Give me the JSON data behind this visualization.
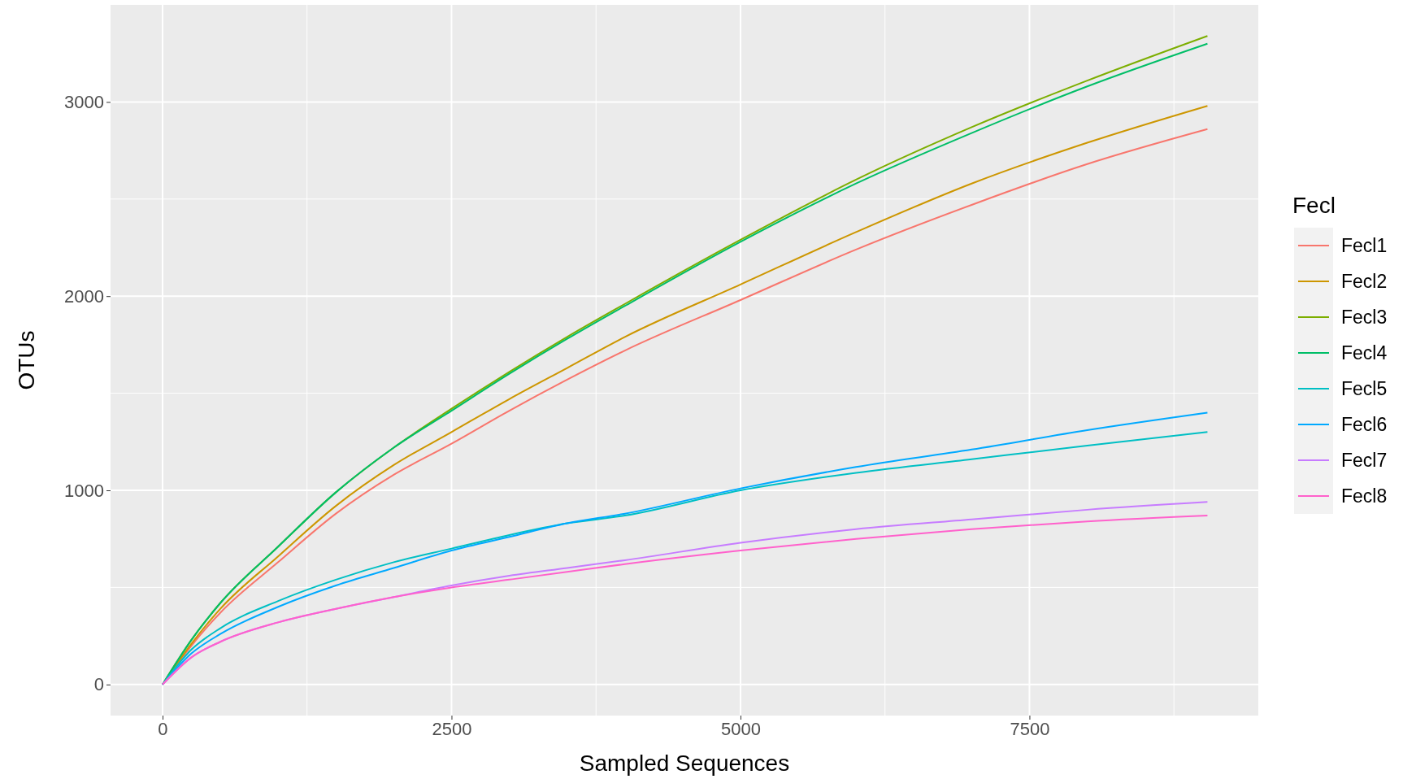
{
  "chart_data": {
    "type": "line",
    "xlabel": "Sampled Sequences",
    "ylabel": "OTUs",
    "legend_title": "Fecl",
    "legend": "right",
    "grid": true,
    "line_style": "solid",
    "marker": "none",
    "x": [
      0,
      250,
      500,
      1000,
      1500,
      2000,
      2500,
      3000,
      3500,
      4000,
      5000,
      6000,
      7000,
      8000,
      9040
    ],
    "xlim": [
      -450,
      9480
    ],
    "ylim": [
      -160,
      3500
    ],
    "xticks": [
      0,
      {
        "value": 1250,
        "label": null
      },
      2500,
      {
        "value": 3750,
        "label": null
      },
      5000,
      {
        "value": 6250,
        "label": null
      },
      7500,
      {
        "value": 8750,
        "label": null
      }
    ],
    "yticks": [
      0,
      {
        "value": 500,
        "label": null
      },
      1000,
      {
        "value": 1500,
        "label": null
      },
      2000,
      {
        "value": 2500,
        "label": null
      },
      3000
    ],
    "series": [
      {
        "name": "Fecl1",
        "color": "#f8766d",
        "values": [
          0,
          200,
          370,
          630,
          880,
          1080,
          1240,
          1410,
          1570,
          1720,
          1980,
          2240,
          2470,
          2680,
          2860
        ]
      },
      {
        "name": "Fecl2",
        "color": "#cd9600",
        "values": [
          0,
          210,
          390,
          660,
          920,
          1130,
          1300,
          1470,
          1630,
          1790,
          2060,
          2330,
          2580,
          2790,
          2980
        ]
      },
      {
        "name": "Fecl3",
        "color": "#7cae00",
        "values": [
          0,
          230,
          420,
          710,
          990,
          1220,
          1420,
          1610,
          1790,
          1960,
          2290,
          2600,
          2870,
          3110,
          3340
        ]
      },
      {
        "name": "Fecl4",
        "color": "#00be67",
        "values": [
          0,
          230,
          420,
          710,
          990,
          1220,
          1410,
          1600,
          1780,
          1950,
          2280,
          2580,
          2840,
          3080,
          3300
        ]
      },
      {
        "name": "Fecl5",
        "color": "#00bfc4",
        "values": [
          0,
          180,
          290,
          430,
          540,
          630,
          700,
          770,
          830,
          870,
          1000,
          1090,
          1160,
          1230,
          1300
        ]
      },
      {
        "name": "Fecl6",
        "color": "#00a9ff",
        "values": [
          0,
          160,
          260,
          400,
          510,
          600,
          690,
          760,
          830,
          880,
          1010,
          1120,
          1210,
          1310,
          1400
        ]
      },
      {
        "name": "Fecl7",
        "color": "#c77cff",
        "values": [
          0,
          140,
          220,
          320,
          390,
          450,
          510,
          560,
          600,
          640,
          730,
          800,
          850,
          900,
          940
        ]
      },
      {
        "name": "Fecl8",
        "color": "#ff61cc",
        "values": [
          0,
          140,
          220,
          320,
          390,
          450,
          500,
          540,
          580,
          620,
          690,
          750,
          800,
          840,
          870
        ]
      }
    ]
  }
}
